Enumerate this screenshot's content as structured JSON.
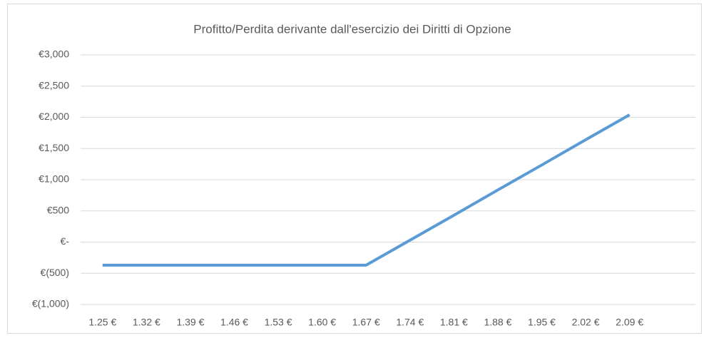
{
  "chart_data": {
    "type": "line",
    "title": "Profitto/Perdita derivante dall'esercizio dei Diritti di Opzione",
    "categories": [
      "1.25 €",
      "1.32 €",
      "1.39 €",
      "1.46 €",
      "1.53 €",
      "1.60 €",
      "1.67 €",
      "1.74 €",
      "1.81 €",
      "1.88 €",
      "1.95 €",
      "2.02 €",
      "2.09 €",
      null
    ],
    "series": [
      {
        "name": "Profitto/Perdita",
        "color": "#5b9bd5",
        "values": [
          -370,
          -370,
          -370,
          -370,
          -370,
          -370,
          -370,
          30,
          430,
          835,
          1235,
          1640,
          2040,
          null
        ]
      }
    ],
    "ylim": [
      -1000,
      3000
    ],
    "yticks": [
      {
        "value": -1000,
        "label": "€(1,000)"
      },
      {
        "value": -500,
        "label": "€(500)"
      },
      {
        "value": 0,
        "label": "€-"
      },
      {
        "value": 500,
        "label": "€500"
      },
      {
        "value": 1000,
        "label": "€1,000"
      },
      {
        "value": 1500,
        "label": "€1,500"
      },
      {
        "value": 2000,
        "label": "€2,000"
      },
      {
        "value": 2500,
        "label": "€2,500"
      },
      {
        "value": 3000,
        "label": "€3,000"
      }
    ],
    "grid": true
  }
}
